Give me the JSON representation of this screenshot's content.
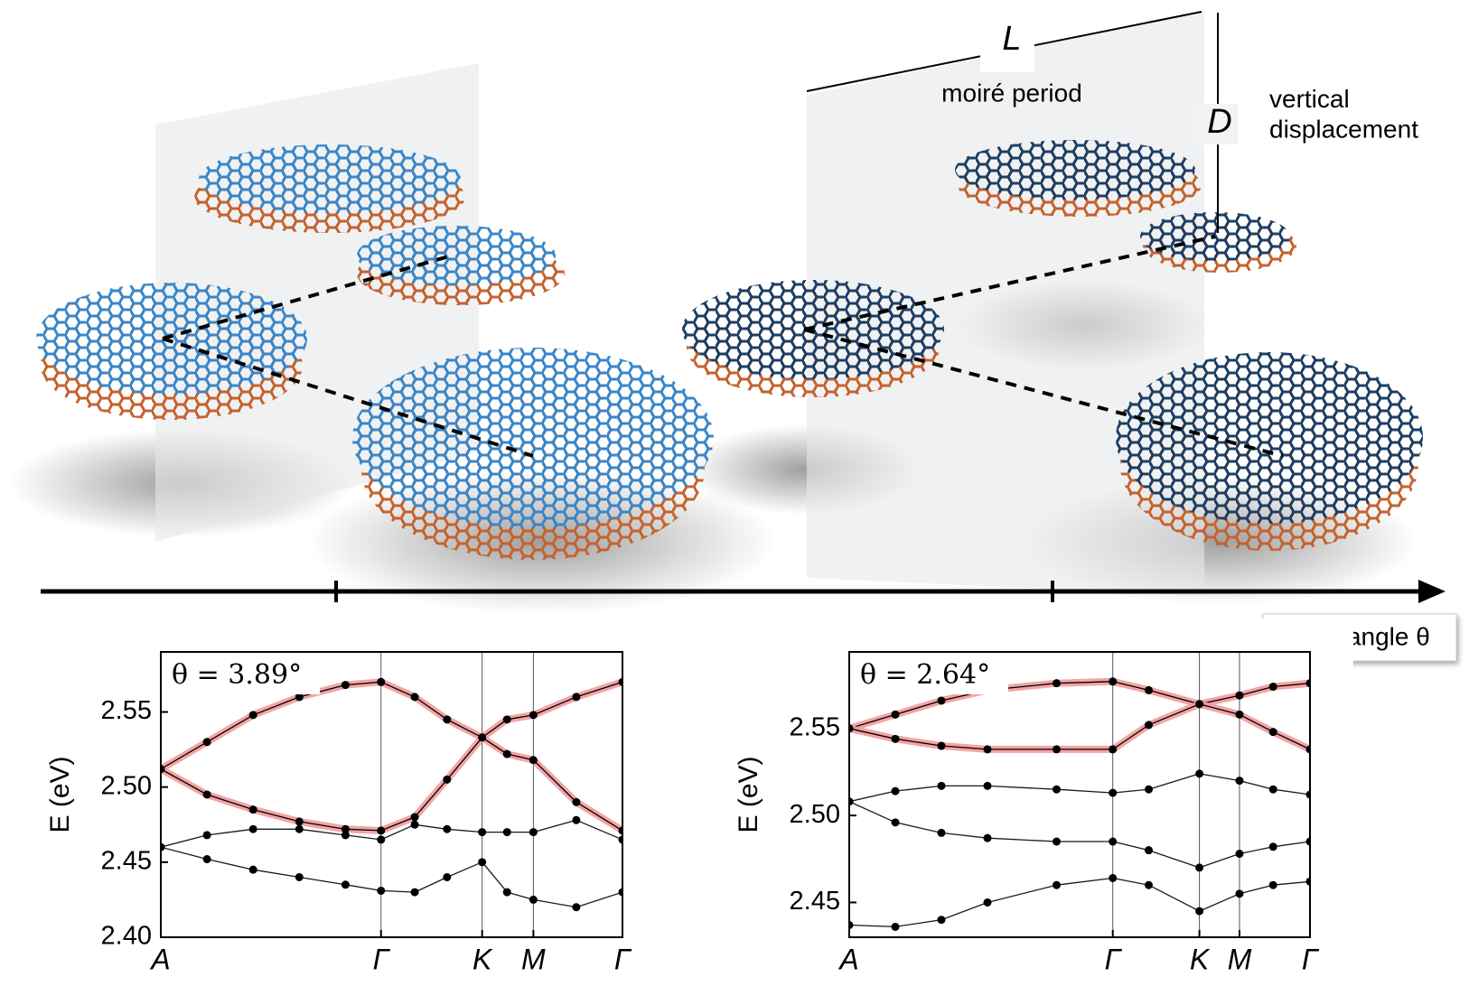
{
  "illustration": {
    "length_symbol": "L",
    "length_label": "moiré period",
    "displacement_symbol": "D",
    "displacement_label": "vertical\ndisplacement",
    "axis_label": "twist angle θ"
  },
  "chart_data": [
    {
      "type": "line",
      "annotation": "θ = 3.89°",
      "ylabel": "E (eV)",
      "x": [
        0,
        0.1,
        0.2,
        0.3,
        0.4,
        0.477,
        0.55,
        0.62,
        0.696,
        0.75,
        0.807,
        0.9,
        1.0
      ],
      "xlim": [
        0,
        1
      ],
      "xticks": [
        {
          "value": 0,
          "label": "A"
        },
        {
          "value": 0.477,
          "label": "Γ"
        },
        {
          "value": 0.696,
          "label": "K"
        },
        {
          "value": 0.807,
          "label": "M"
        },
        {
          "value": 1.0,
          "label": "Γ"
        }
      ],
      "ylim": [
        2.4,
        2.59
      ],
      "yticks": [
        {
          "value": 2.4,
          "label": "2.40"
        },
        2.45,
        {
          "value": 2.5,
          "label": "2.50"
        },
        2.55
      ],
      "grid": "x",
      "series": [
        {
          "color": "#f29a9a",
          "width": 8,
          "values": [
            2.512,
            2.53,
            2.548,
            2.56,
            2.568,
            2.57,
            2.56,
            2.545,
            2.533,
            2.545,
            2.548,
            2.56,
            2.57
          ]
        },
        {
          "color": "#f29a9a",
          "width": 8,
          "values": [
            2.512,
            2.495,
            2.485,
            2.477,
            2.472,
            2.471,
            2.48,
            2.505,
            2.533,
            2.522,
            2.518,
            2.49,
            2.471
          ]
        },
        {
          "color": "#000000",
          "width": 1.3,
          "values": [
            2.46,
            2.468,
            2.472,
            2.472,
            2.468,
            2.465,
            2.475,
            2.472,
            2.47,
            2.47,
            2.47,
            2.478,
            2.465
          ]
        },
        {
          "color": "#000000",
          "width": 1.3,
          "values": [
            2.46,
            2.452,
            2.445,
            2.44,
            2.435,
            2.431,
            2.43,
            2.44,
            2.45,
            2.43,
            2.425,
            2.42,
            2.43
          ]
        }
      ]
    },
    {
      "type": "line",
      "annotation": "θ = 2.64°",
      "ylabel": "E (eV)",
      "x": [
        0,
        0.1,
        0.2,
        0.3,
        0.45,
        0.572,
        0.65,
        0.76,
        0.847,
        0.92,
        1.0
      ],
      "xlim": [
        0,
        1
      ],
      "xticks": [
        {
          "value": 0,
          "label": "A"
        },
        {
          "value": 0.572,
          "label": "Γ"
        },
        {
          "value": 0.76,
          "label": "K"
        },
        {
          "value": 0.847,
          "label": "M"
        },
        {
          "value": 1.0,
          "label": "Γ"
        }
      ],
      "ylim": [
        2.43,
        2.594
      ],
      "yticks": [
        2.45,
        {
          "value": 2.5,
          "label": "2.50"
        },
        2.55
      ],
      "grid": "x",
      "series": [
        {
          "color": "#f29a9a",
          "width": 8,
          "values": [
            2.55,
            2.558,
            2.566,
            2.572,
            2.576,
            2.577,
            2.572,
            2.564,
            2.569,
            2.574,
            2.576
          ]
        },
        {
          "color": "#f29a9a",
          "width": 8,
          "values": [
            2.55,
            2.544,
            2.54,
            2.538,
            2.538,
            2.538,
            2.552,
            2.564,
            2.558,
            2.548,
            2.538
          ]
        },
        {
          "color": "#000000",
          "width": 1.3,
          "values": [
            2.508,
            2.514,
            2.517,
            2.517,
            2.515,
            2.513,
            2.515,
            2.524,
            2.52,
            2.515,
            2.512
          ]
        },
        {
          "color": "#000000",
          "width": 1.3,
          "values": [
            2.508,
            2.496,
            2.49,
            2.487,
            2.485,
            2.485,
            2.48,
            2.47,
            2.478,
            2.482,
            2.485
          ]
        },
        {
          "color": "#000000",
          "width": 1.3,
          "values": [
            2.437,
            2.436,
            2.44,
            2.45,
            2.46,
            2.464,
            2.46,
            2.445,
            2.455,
            2.46,
            2.462
          ]
        }
      ]
    }
  ]
}
